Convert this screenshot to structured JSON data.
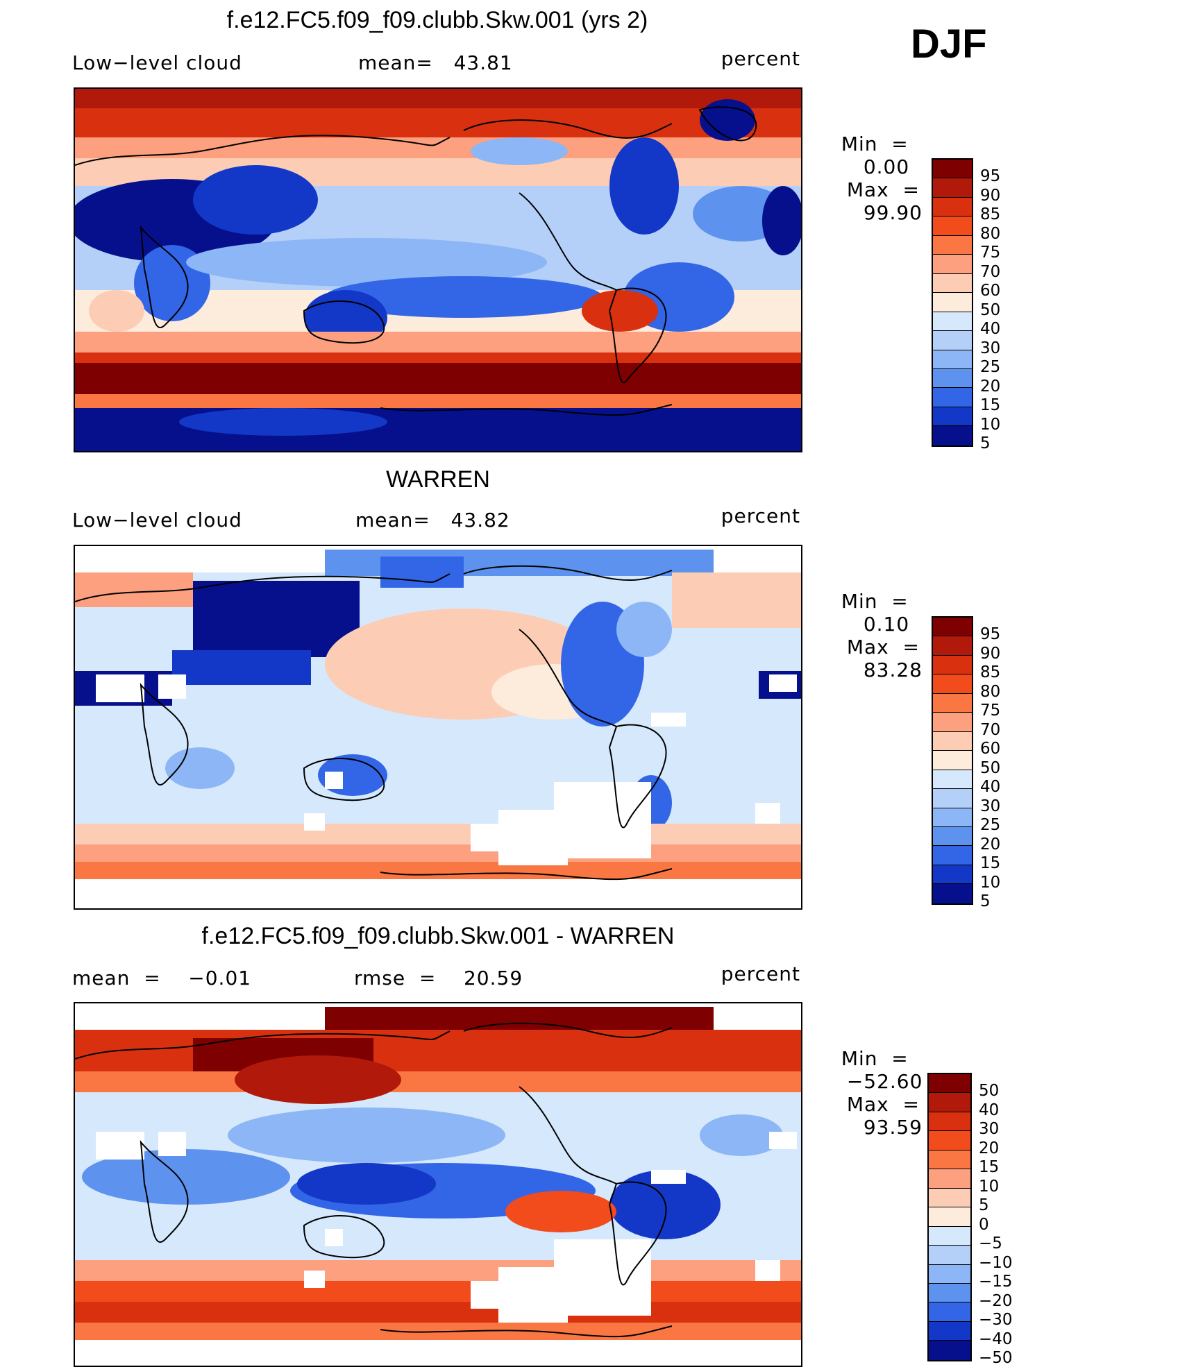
{
  "season": "DJF",
  "panels": [
    {
      "title": "f.e12.FC5.f09_f09.clubb.Skw.001 (yrs 2)",
      "left_label": "Low−level cloud",
      "center_label": "mean=   43.81",
      "right_label": "percent",
      "min_label": "Min  =",
      "min_value": "0.00",
      "max_label": "Max  =",
      "max_value": "99.90",
      "colorbar_ticks": [
        "95",
        "90",
        "85",
        "80",
        "75",
        "70",
        "60",
        "50",
        "40",
        "30",
        "25",
        "20",
        "15",
        "10",
        "5"
      ],
      "colors": [
        "#7f0000",
        "#b11a0b",
        "#d93010",
        "#f24b1c",
        "#fa7744",
        "#fca07f",
        "#fdccb4",
        "#fdecdc",
        "#d6e8fb",
        "#b4d0f8",
        "#8cb6f5",
        "#5d93ee",
        "#3266e7",
        "#1338c8",
        "#06108d"
      ]
    },
    {
      "title": "WARREN",
      "left_label": "Low−level cloud",
      "center_label": "mean=   43.82",
      "right_label": "percent",
      "min_label": "Min  =",
      "min_value": "0.10",
      "max_label": "Max  =",
      "max_value": "83.28",
      "colorbar_ticks": [
        "95",
        "90",
        "85",
        "80",
        "75",
        "70",
        "60",
        "50",
        "40",
        "30",
        "25",
        "20",
        "15",
        "10",
        "5"
      ],
      "colors": [
        "#7f0000",
        "#b11a0b",
        "#d93010",
        "#f24b1c",
        "#fa7744",
        "#fca07f",
        "#fdccb4",
        "#fdecdc",
        "#d6e8fb",
        "#b4d0f8",
        "#8cb6f5",
        "#5d93ee",
        "#3266e7",
        "#1338c8",
        "#06108d"
      ]
    },
    {
      "title": "f.e12.FC5.f09_f09.clubb.Skw.001 - WARREN",
      "left_label": "mean  =    −0.01",
      "center_label": "rmse  =    20.59",
      "right_label": "percent",
      "min_label": "Min  =",
      "min_value": "−52.60",
      "max_label": "Max  =",
      "max_value": "93.59",
      "colorbar_ticks": [
        "50",
        "40",
        "30",
        "20",
        "15",
        "10",
        "5",
        "0",
        "−5",
        "−10",
        "−15",
        "−20",
        "−30",
        "−40",
        "−50"
      ],
      "colors": [
        "#7f0000",
        "#b11a0b",
        "#d93010",
        "#f24b1c",
        "#fa7744",
        "#fca07f",
        "#fdccb4",
        "#fdecdc",
        "#d6e8fb",
        "#b4d0f8",
        "#8cb6f5",
        "#5d93ee",
        "#3266e7",
        "#1338c8",
        "#06108d"
      ]
    }
  ]
}
